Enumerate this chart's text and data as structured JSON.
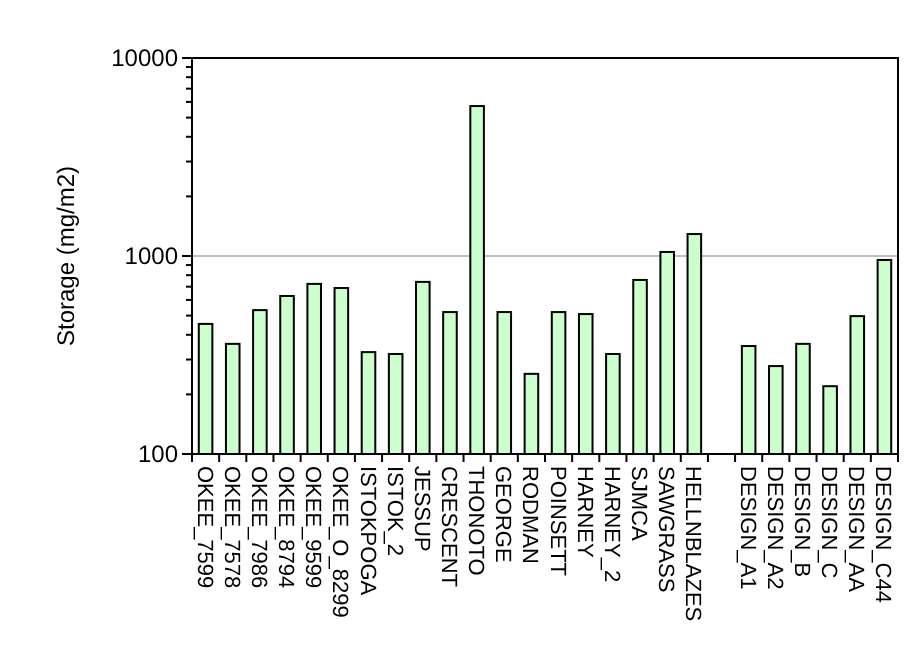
{
  "chart_data": {
    "type": "bar",
    "ylabel": "Storage (mg/m2)",
    "log": true,
    "grid": "y",
    "color": "#ccffcc",
    "categories": [
      "OKEE_7599",
      "OKEE_7578",
      "OKEE_7986",
      "OKEE_8794",
      "OKEE_9599",
      "OKEE_O_8299",
      "ISTOKPOGA",
      "ISTOK_2",
      "JESSUP",
      "CRESCENT",
      "THONOTO",
      "GEORGE",
      "RODMAN",
      "POINSETT",
      "HARNEY",
      "HARNEY_2",
      "SJMCA",
      "SAWGRASS",
      "HELLNBLAZES",
      null,
      "DESIGN_A1",
      "DESIGN_A2",
      "DESIGN_B",
      "DESIGN_C",
      "DESIGN_AA",
      "DESIGN_C44"
    ],
    "values": [
      454,
      360,
      533,
      628,
      723,
      689,
      327,
      320,
      740,
      521,
      5720,
      521,
      254,
      521,
      509,
      320,
      757,
      1048,
      1291,
      null,
      351,
      278,
      360,
      220,
      497,
      955
    ],
    "ylim": [
      100,
      10000
    ],
    "yticks": [
      100,
      {
        "value": 200,
        "label": null
      },
      {
        "value": 300,
        "label": null
      },
      {
        "value": 400,
        "label": null
      },
      {
        "value": 500,
        "label": null
      },
      {
        "value": 600,
        "label": null
      },
      {
        "value": 700,
        "label": null
      },
      {
        "value": 800,
        "label": null
      },
      {
        "value": 900,
        "label": null
      },
      1000,
      {
        "value": 2000,
        "label": null
      },
      {
        "value": 3000,
        "label": null
      },
      {
        "value": 4000,
        "label": null
      },
      {
        "value": 5000,
        "label": null
      },
      {
        "value": 6000,
        "label": null
      },
      {
        "value": 7000,
        "label": null
      },
      {
        "value": 8000,
        "label": null
      },
      {
        "value": 9000,
        "label": null
      },
      10000
    ]
  }
}
